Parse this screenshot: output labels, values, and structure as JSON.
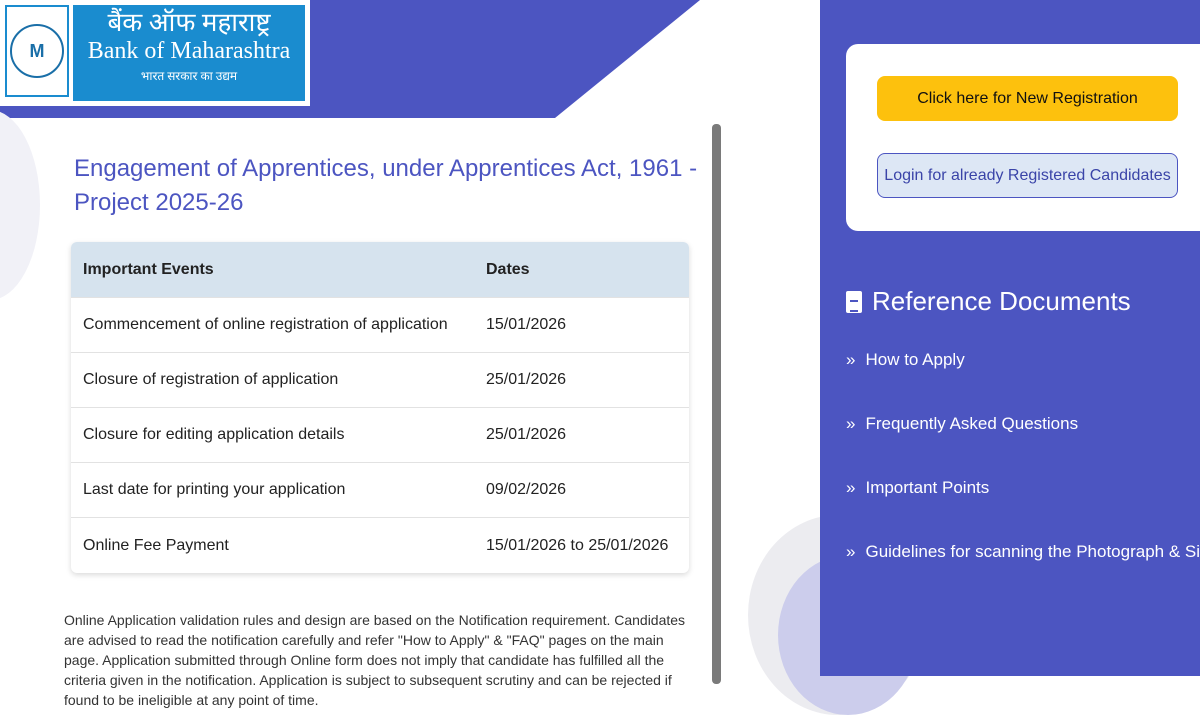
{
  "header": {
    "logo": {
      "hindi": "बैंक ऑफ महाराष्ट्र",
      "english": "Bank of Maharashtra",
      "tagline": "भारत सरकार का उद्यम"
    }
  },
  "main": {
    "title": "Engagement of Apprentices, under Apprentices Act, 1961 - Project 2025-26",
    "table": {
      "headers": [
        "Important Events",
        "Dates"
      ],
      "rows": [
        [
          "Commencement of online registration of application",
          "15/01/2026"
        ],
        [
          "Closure of registration of application",
          "25/01/2026"
        ],
        [
          "Closure for editing application details",
          "25/01/2026"
        ],
        [
          "Last date for printing your application",
          "09/02/2026"
        ],
        [
          "Online Fee Payment",
          "15/01/2026 to 25/01/2026"
        ]
      ]
    },
    "note": "Online Application validation rules and design are based on the Notification requirement. Candidates are advised to read the notification carefully and refer \"How to Apply\" & \"FAQ\" pages on the main page. Application submitted through Online form does not imply that candidate has fulfilled all the criteria given in the notification. Application is subject to subsequent scrutiny and can be rejected if found to be ineligible at any point of time."
  },
  "sidebar": {
    "new_registration": "Click here for New Registration",
    "login": "Login for already Registered Candidates",
    "ref_title": "Reference Documents",
    "links": [
      "How to Apply",
      "Frequently Asked Questions",
      "Important Points",
      "Guidelines for scanning the Photograph & Signature"
    ]
  },
  "colors": {
    "primary": "#4c55c1",
    "accent": "#fdc10d",
    "table_header": "#d6e3ee"
  }
}
